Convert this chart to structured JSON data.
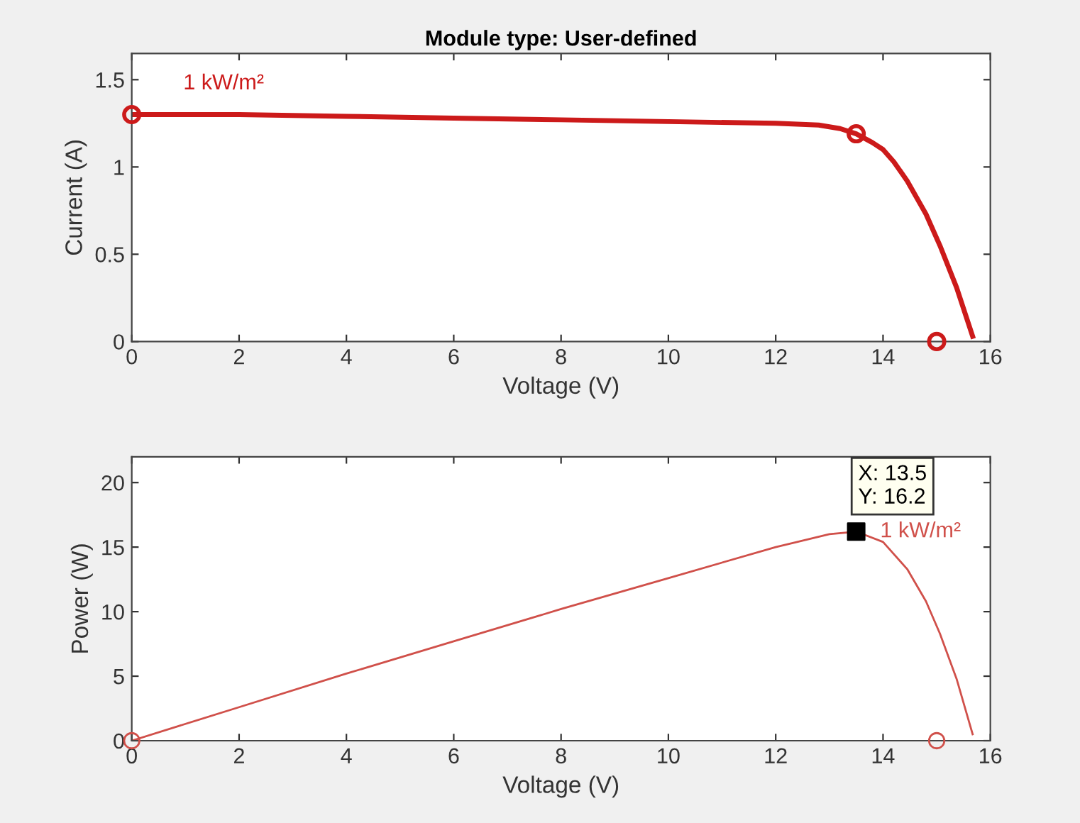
{
  "chart_data": [
    {
      "type": "line",
      "title": "Module type: User-defined",
      "xlabel": "Voltage (V)",
      "ylabel": "Current (A)",
      "xlim": [
        0,
        16
      ],
      "xticks": [
        0,
        2,
        4,
        6,
        8,
        10,
        12,
        14,
        16
      ],
      "ylim": [
        0,
        1.65
      ],
      "yticks": [
        0,
        0.5,
        1,
        1.5
      ],
      "grid": false,
      "legend": false,
      "series": [
        {
          "color": "#cc1a1a",
          "x": [
            0,
            2,
            4,
            6,
            8,
            10,
            12,
            12.8,
            13.2,
            13.5,
            13.8,
            14.0,
            14.2,
            14.45,
            14.8,
            15.06,
            15.37,
            15.67
          ],
          "values": [
            1.3,
            1.3,
            1.29,
            1.28,
            1.27,
            1.26,
            1.25,
            1.24,
            1.22,
            1.19,
            1.14,
            1.1,
            1.03,
            0.92,
            0.73,
            0.55,
            0.31,
            0.03
          ]
        },
        {
          "type": "scatter",
          "marker": "circle",
          "color": "#cc1a1a",
          "x": [
            0,
            13.5,
            15
          ],
          "values": [
            1.3,
            1.19,
            0
          ]
        }
      ],
      "annotations": [
        "1 kW/m²"
      ]
    },
    {
      "type": "line",
      "xlabel": "Voltage (V)",
      "ylabel": "Power (W)",
      "xlim": [
        0,
        16
      ],
      "xticks": [
        0,
        2,
        4,
        6,
        8,
        10,
        12,
        14,
        16
      ],
      "ylim": [
        0,
        22
      ],
      "yticks": [
        0,
        5,
        10,
        15,
        20
      ],
      "grid": false,
      "legend": false,
      "series": [
        {
          "color": "#d0504a",
          "x": [
            0,
            2,
            4,
            6,
            8,
            10,
            12,
            13,
            13.5,
            14,
            14.45,
            14.8,
            15.06,
            15.37,
            15.67
          ],
          "values": [
            0,
            2.6,
            5.2,
            7.7,
            10.2,
            12.6,
            15.0,
            16.0,
            16.2,
            15.4,
            13.3,
            10.8,
            8.3,
            4.8,
            0.5
          ]
        },
        {
          "type": "scatter",
          "marker": "circle",
          "color": "#d0504a",
          "x": [
            0,
            15
          ],
          "values": [
            0,
            0
          ]
        },
        {
          "type": "scatter",
          "marker": "square",
          "color": "#000000",
          "x": [
            13.5
          ],
          "values": [
            16.2
          ]
        }
      ],
      "annotations": [
        {
          "text": "1 kW/m²",
          "x": 13.8,
          "y": 16.2
        },
        {
          "text": "X: 13.5\nY: 16.2",
          "x": 13.5,
          "y": 16.2
        }
      ]
    }
  ]
}
